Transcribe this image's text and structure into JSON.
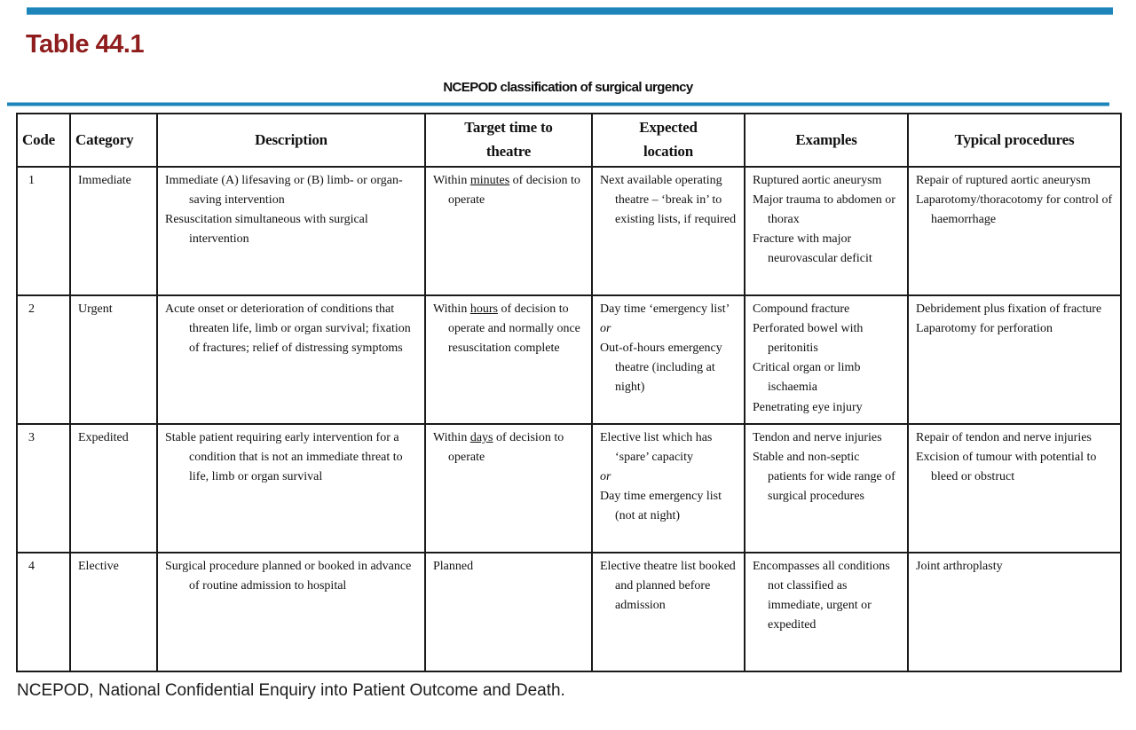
{
  "page": {
    "title": "Table 44.1",
    "caption": "NCEPOD classification of surgical urgency",
    "footnote": "NCEPOD, National Confidential Enquiry into Patient Outcome and Death.",
    "colors": {
      "accent_blue": "#1e85ba",
      "title_red": "#8f1d1d",
      "border_black": "#1a1a1a"
    }
  },
  "table": {
    "columns": [
      "Code",
      "Category",
      "Description",
      "Target time to theatre",
      "Expected location",
      "Examples",
      "Typical procedures"
    ],
    "rows": [
      {
        "code": "1",
        "category": "Immediate",
        "description": [
          "Immediate (A) lifesaving or (B) limb- or organ-saving intervention",
          "Resuscitation simultaneous with surgical intervention"
        ],
        "target_time": [
          {
            "segments": [
              {
                "text": "Within "
              },
              {
                "text": "minutes",
                "underline": true
              },
              {
                "text": " of decision to operate"
              }
            ]
          }
        ],
        "expected_location": [
          "Next available operating theatre – ‘break in’ to existing lists, if required"
        ],
        "examples": [
          "Ruptured aortic aneurysm",
          "Major trauma to abdomen or thorax",
          "Fracture with major neurovascular deficit"
        ],
        "typical_procedures": [
          "Repair of ruptured aortic aneurysm",
          "Laparotomy/thoracotomy for control of haemorrhage"
        ]
      },
      {
        "code": "2",
        "category": "Urgent",
        "description": [
          "Acute onset or deterioration of conditions that threaten life, limb or organ survival; fixation of fractures; relief of distressing symptoms"
        ],
        "target_time": [
          {
            "segments": [
              {
                "text": "Within "
              },
              {
                "text": "hours",
                "underline": true
              },
              {
                "text": " of decision to operate and normally once resuscitation complete"
              }
            ]
          }
        ],
        "expected_location": [
          "Day time ‘emergency list’",
          {
            "italic": true,
            "text": "or"
          },
          "Out-of-hours emergency theatre (including at night)"
        ],
        "examples": [
          "Compound fracture",
          "Perforated bowel with peritonitis",
          "Critical organ or limb ischaemia",
          "Penetrating eye injury"
        ],
        "typical_procedures": [
          "Debridement plus fixation of fracture",
          "Laparotomy for perforation"
        ]
      },
      {
        "code": "3",
        "category": "Expedited",
        "description": [
          "Stable patient requiring early intervention for a condition that is not an immediate threat to life, limb or organ survival"
        ],
        "target_time": [
          {
            "segments": [
              {
                "text": "Within "
              },
              {
                "text": "days",
                "underline": true
              },
              {
                "text": " of decision to operate"
              }
            ]
          }
        ],
        "expected_location": [
          "Elective list which has ‘spare’ capacity",
          {
            "italic": true,
            "text": "or"
          },
          "Day time emergency list (not at night)"
        ],
        "examples": [
          "Tendon and nerve injuries",
          "Stable and non-septic patients for wide range of surgical procedures"
        ],
        "typical_procedures": [
          "Repair of tendon and nerve injuries",
          "Excision of tumour with potential to bleed or obstruct"
        ]
      },
      {
        "code": "4",
        "category": "Elective",
        "description": [
          "Surgical procedure planned or booked in advance of routine admission to hospital"
        ],
        "target_time": [
          "Planned"
        ],
        "expected_location": [
          "Elective theatre list booked and planned before admission"
        ],
        "examples": [
          "Encompasses all conditions not classified as immediate, urgent or expedited"
        ],
        "typical_procedures": [
          "Joint arthroplasty"
        ]
      }
    ]
  }
}
